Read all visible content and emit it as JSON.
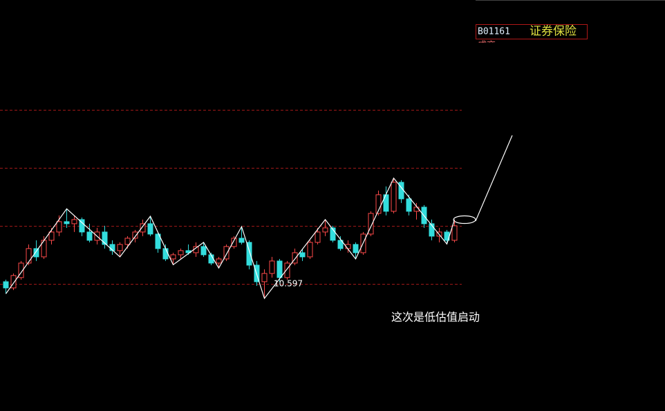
{
  "header": {
    "code": "B01161",
    "name": "证券保险",
    "sub": "成交"
  },
  "chart_data": {
    "type": "candlestick",
    "open": [
      11.0,
      10.85,
      11.1,
      11.45,
      11.8,
      11.6,
      12.0,
      12.2,
      12.45,
      12.4,
      12.5,
      12.2,
      12.0,
      12.2,
      11.9,
      11.75,
      11.9,
      12.05,
      12.2,
      12.4,
      12.15,
      11.8,
      11.55,
      11.65,
      11.75,
      11.7,
      11.85,
      11.65,
      11.45,
      11.55,
      11.85,
      12.05,
      11.95,
      11.4,
      11.0,
      11.2,
      11.5,
      11.1,
      11.45,
      11.7,
      11.6,
      11.95,
      12.2,
      12.3,
      12.0,
      11.8,
      11.9,
      11.7,
      12.15,
      12.65,
      13.1,
      12.7,
      13.4,
      13.0,
      12.7,
      12.8,
      12.4,
      12.1,
      12.2,
      12.0
    ],
    "high": [
      11.05,
      11.2,
      11.5,
      11.9,
      12.0,
      12.1,
      12.3,
      12.6,
      12.76,
      12.6,
      12.55,
      12.4,
      12.3,
      12.35,
      12.0,
      11.95,
      12.1,
      12.25,
      12.5,
      12.58,
      12.2,
      11.9,
      11.7,
      11.8,
      11.9,
      11.95,
      11.95,
      11.7,
      11.6,
      11.9,
      12.1,
      12.33,
      12.0,
      11.5,
      11.3,
      11.6,
      11.55,
      11.5,
      11.8,
      11.8,
      12.0,
      12.3,
      12.5,
      12.35,
      12.1,
      12.0,
      11.95,
      12.2,
      12.7,
      13.2,
      13.3,
      13.5,
      13.45,
      13.1,
      12.9,
      12.85,
      12.5,
      12.3,
      12.25,
      12.5
    ],
    "low": [
      10.71,
      10.8,
      11.05,
      11.4,
      11.5,
      11.55,
      11.9,
      12.1,
      12.3,
      12.2,
      12.1,
      11.95,
      11.9,
      11.8,
      11.65,
      11.6,
      11.8,
      11.95,
      12.1,
      12.1,
      11.7,
      11.5,
      11.41,
      11.55,
      11.65,
      11.6,
      11.6,
      11.4,
      11.33,
      11.5,
      11.8,
      11.9,
      11.3,
      10.9,
      10.597,
      11.1,
      11.0,
      11.05,
      11.4,
      11.5,
      11.55,
      11.9,
      12.1,
      11.95,
      11.75,
      11.7,
      11.55,
      11.65,
      12.1,
      12.6,
      12.6,
      12.65,
      12.9,
      12.6,
      12.5,
      12.3,
      12.0,
      11.95,
      11.91,
      11.95
    ],
    "close": [
      10.85,
      11.15,
      11.45,
      11.8,
      11.6,
      12.0,
      12.2,
      12.45,
      12.4,
      12.5,
      12.2,
      12.0,
      12.2,
      11.9,
      11.75,
      11.9,
      12.05,
      12.2,
      12.4,
      12.15,
      11.8,
      11.55,
      11.65,
      11.75,
      11.7,
      11.85,
      11.65,
      11.45,
      11.55,
      11.85,
      12.05,
      11.95,
      11.4,
      11.0,
      11.2,
      11.5,
      11.1,
      11.45,
      11.7,
      11.6,
      11.95,
      12.2,
      12.3,
      12.0,
      11.8,
      11.9,
      11.7,
      12.15,
      12.65,
      13.1,
      12.7,
      13.4,
      13.0,
      12.7,
      12.8,
      12.4,
      12.1,
      12.2,
      12.0,
      12.35
    ],
    "zigzag": [
      {
        "index": 0,
        "point": "low"
      },
      {
        "index": 8,
        "point": "high"
      },
      {
        "index": 15,
        "point": "low"
      },
      {
        "index": 19,
        "point": "high"
      },
      {
        "index": 22,
        "point": "low"
      },
      {
        "index": 26,
        "point": "high"
      },
      {
        "index": 28,
        "point": "low"
      },
      {
        "index": 31,
        "point": "high"
      },
      {
        "index": 34,
        "point": "low"
      },
      {
        "index": 42,
        "point": "high"
      },
      {
        "index": 46,
        "point": "low"
      },
      {
        "index": 51,
        "point": "high"
      },
      {
        "index": 58,
        "point": "low"
      },
      {
        "index": 59,
        "point": "high"
      }
    ],
    "low_label_index": 34,
    "hlines": [
      10.95,
      12.35,
      13.75,
      15.15
    ],
    "ylim": [
      7.88,
      17.8
    ],
    "up_color": "#ff4a4a",
    "down_color": "#33dddd",
    "hline_color": "#a01818",
    "annotation": "这次是低估值启动"
  }
}
